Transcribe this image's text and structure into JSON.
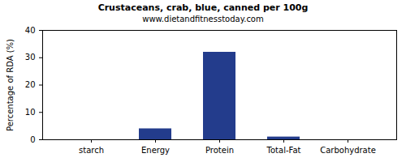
{
  "chart_data": {
    "type": "bar",
    "title": "Crustaceans, crab, blue, canned per 100g",
    "subtitle": "www.dietandfitnesstoday.com",
    "y_label": "Percentage of RDA (%)",
    "categories": [
      "starch",
      "Energy",
      "Protein",
      "Total-Fat",
      "Carbohydrate"
    ],
    "values": [
      0,
      4,
      32,
      1,
      0
    ],
    "color": "#233c8c",
    "ylim": [
      0,
      40
    ],
    "yticks": [
      0,
      10,
      20,
      30,
      40
    ],
    "grid": false
  }
}
